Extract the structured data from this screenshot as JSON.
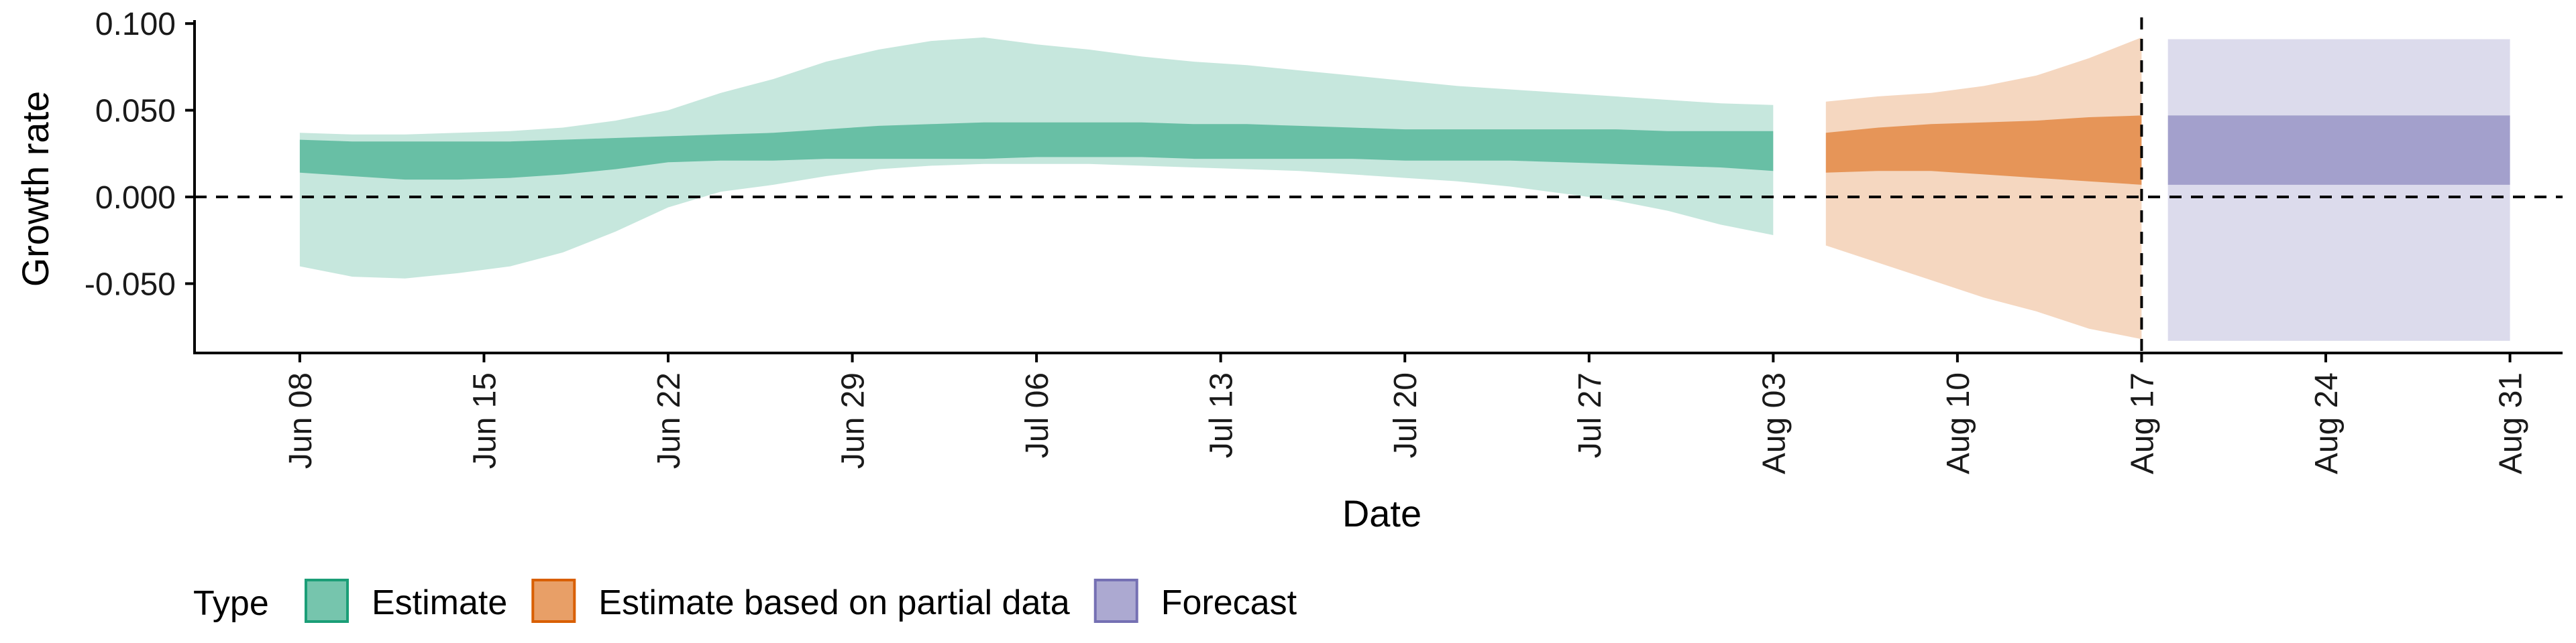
{
  "chart_data": {
    "type": "area",
    "xlabel": "Date",
    "ylabel": "Growth rate",
    "x_ticks": [
      "Jun 08",
      "Jun 15",
      "Jun 22",
      "Jun 29",
      "Jul 06",
      "Jul 13",
      "Jul 20",
      "Jul 27",
      "Aug 03",
      "Aug 10",
      "Aug 17",
      "Aug 24",
      "Aug 31"
    ],
    "y_ticks": [
      "0.100",
      "0.050",
      "0.000",
      "-0.050"
    ],
    "ylim": [
      -0.09,
      0.102
    ],
    "xlim": [
      "2021-06-04",
      "2021-09-02"
    ],
    "reference_lines": {
      "horizontal_y": 0.0,
      "vertical_x": "2021-08-17"
    },
    "grid": false,
    "legend": {
      "title": "Type",
      "placement": "bottom-left",
      "entries": [
        "Estimate",
        "Estimate based on partial data",
        "Forecast"
      ]
    },
    "colors": {
      "Estimate": "#1b9e77",
      "Estimate based on partial data": "#d95f02",
      "Forecast": "#7570b3"
    },
    "series": [
      {
        "name": "Estimate",
        "x": [
          "2021-06-08",
          "2021-06-10",
          "2021-06-12",
          "2021-06-14",
          "2021-06-16",
          "2021-06-18",
          "2021-06-20",
          "2021-06-22",
          "2021-06-24",
          "2021-06-26",
          "2021-06-28",
          "2021-06-30",
          "2021-07-02",
          "2021-07-04",
          "2021-07-06",
          "2021-07-08",
          "2021-07-10",
          "2021-07-12",
          "2021-07-14",
          "2021-07-16",
          "2021-07-18",
          "2021-07-20",
          "2021-07-22",
          "2021-07-24",
          "2021-07-26",
          "2021-07-28",
          "2021-07-30",
          "2021-08-01",
          "2021-08-03"
        ],
        "lower_90": [
          -0.04,
          -0.046,
          -0.047,
          -0.044,
          -0.04,
          -0.032,
          -0.02,
          -0.006,
          0.003,
          0.007,
          0.012,
          0.016,
          0.018,
          0.019,
          0.019,
          0.019,
          0.018,
          0.017,
          0.016,
          0.015,
          0.013,
          0.011,
          0.009,
          0.006,
          0.002,
          -0.002,
          -0.008,
          -0.016,
          -0.022
        ],
        "upper_90": [
          0.037,
          0.036,
          0.036,
          0.037,
          0.038,
          0.04,
          0.044,
          0.05,
          0.06,
          0.068,
          0.078,
          0.085,
          0.09,
          0.092,
          0.088,
          0.085,
          0.081,
          0.078,
          0.076,
          0.073,
          0.07,
          0.067,
          0.064,
          0.062,
          0.06,
          0.058,
          0.056,
          0.054,
          0.053
        ],
        "lower_50": [
          0.014,
          0.012,
          0.01,
          0.01,
          0.011,
          0.013,
          0.016,
          0.02,
          0.021,
          0.021,
          0.022,
          0.022,
          0.022,
          0.022,
          0.023,
          0.023,
          0.023,
          0.022,
          0.022,
          0.022,
          0.022,
          0.021,
          0.021,
          0.021,
          0.02,
          0.019,
          0.018,
          0.017,
          0.015
        ],
        "upper_50": [
          0.033,
          0.032,
          0.032,
          0.032,
          0.032,
          0.033,
          0.034,
          0.035,
          0.036,
          0.037,
          0.039,
          0.041,
          0.042,
          0.043,
          0.043,
          0.043,
          0.043,
          0.042,
          0.042,
          0.041,
          0.04,
          0.039,
          0.039,
          0.039,
          0.039,
          0.039,
          0.038,
          0.038,
          0.038
        ]
      },
      {
        "name": "Estimate based on partial data",
        "x": [
          "2021-08-05",
          "2021-08-07",
          "2021-08-09",
          "2021-08-11",
          "2021-08-13",
          "2021-08-15",
          "2021-08-17"
        ],
        "lower_90": [
          -0.028,
          -0.038,
          -0.048,
          -0.058,
          -0.066,
          -0.076,
          -0.082
        ],
        "upper_90": [
          0.055,
          0.058,
          0.06,
          0.064,
          0.07,
          0.08,
          0.092
        ],
        "lower_50": [
          0.014,
          0.015,
          0.015,
          0.013,
          0.011,
          0.009,
          0.007
        ],
        "upper_50": [
          0.037,
          0.04,
          0.042,
          0.043,
          0.044,
          0.046,
          0.047
        ]
      },
      {
        "name": "Forecast",
        "x": [
          "2021-08-18",
          "2021-08-31"
        ],
        "lower_90": [
          -0.083,
          -0.083
        ],
        "upper_90": [
          0.091,
          0.091
        ],
        "lower_50": [
          0.007,
          0.007
        ],
        "upper_50": [
          0.047,
          0.047
        ]
      }
    ]
  }
}
